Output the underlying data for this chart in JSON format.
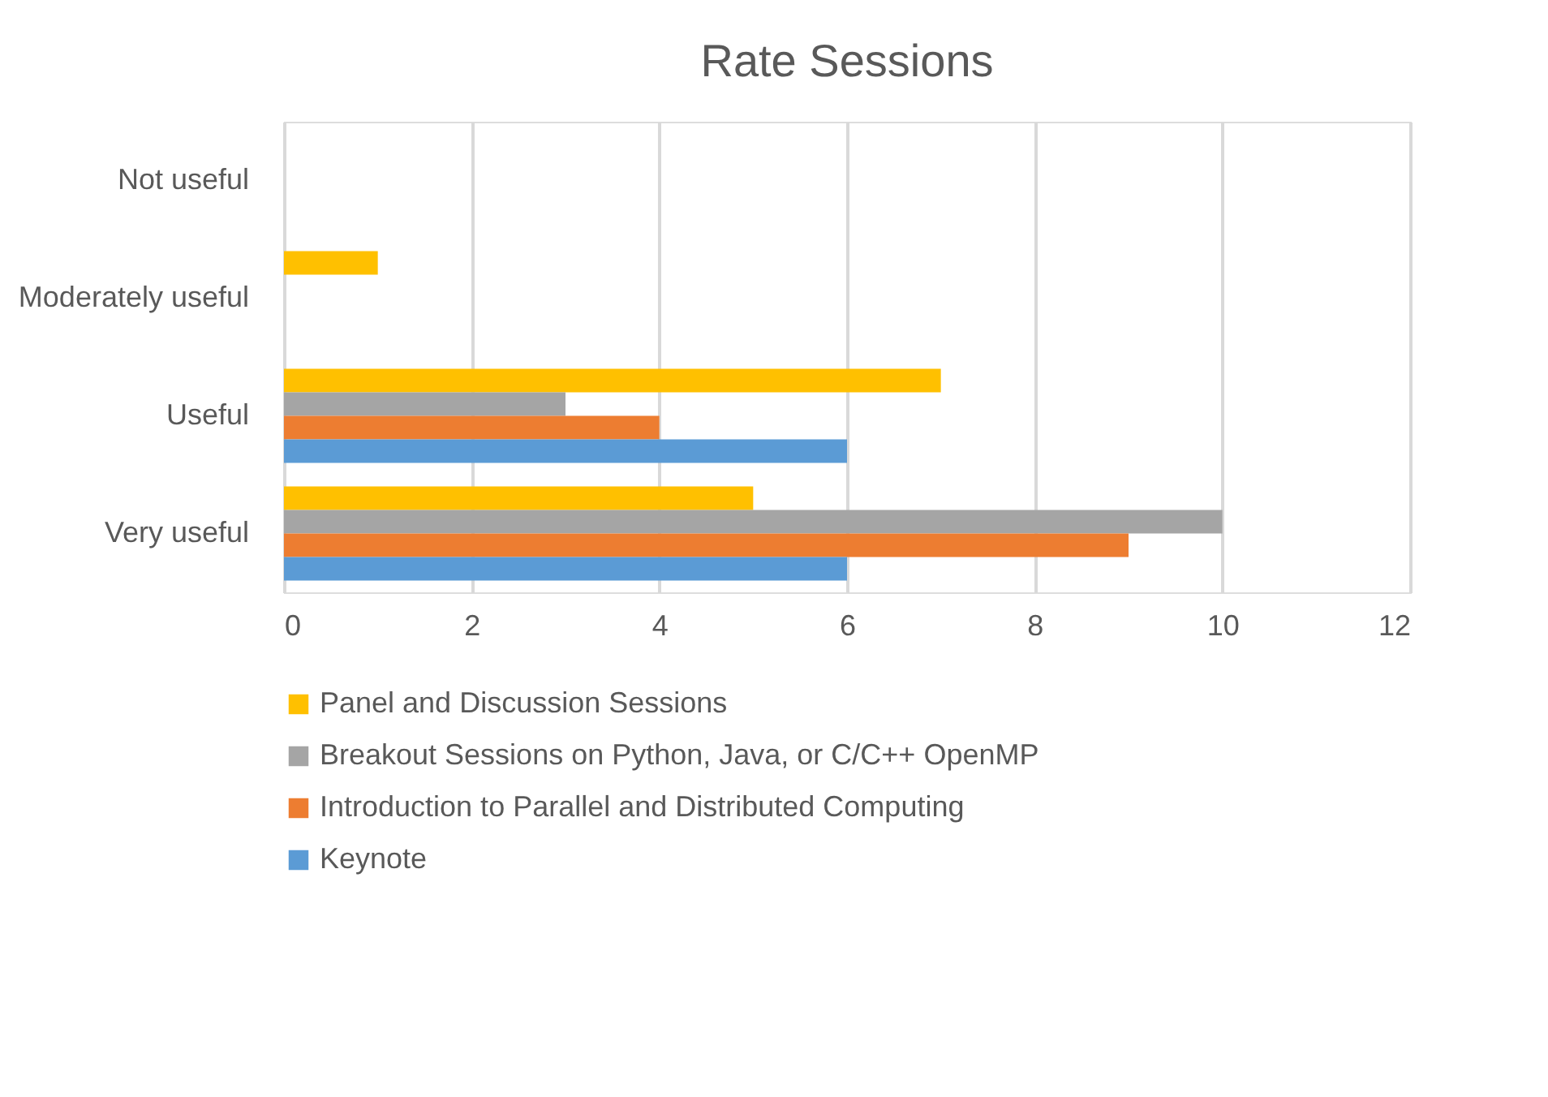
{
  "chart_data": {
    "type": "bar",
    "orientation": "horizontal",
    "title": "Rate Sessions",
    "categories": [
      "Not useful",
      "Moderately useful",
      "Useful",
      "Very useful"
    ],
    "series": [
      {
        "name": "Panel and Discussion Sessions",
        "color": "#ffc000",
        "values": [
          0,
          1,
          7,
          5
        ]
      },
      {
        "name": "Breakout Sessions on Python, Java, or C/C++ OpenMP",
        "color": "#a5a5a5",
        "values": [
          0,
          0,
          3,
          10
        ]
      },
      {
        "name": "Introduction to Parallel and Distributed Computing",
        "color": "#ed7d31",
        "values": [
          0,
          0,
          4,
          9
        ]
      },
      {
        "name": "Keynote",
        "color": "#5b9bd5",
        "values": [
          0,
          0,
          6,
          6
        ]
      }
    ],
    "xlim": [
      0,
      12
    ],
    "xticks": [
      0,
      2,
      4,
      6,
      8,
      10,
      12
    ],
    "grid": "x",
    "legend": "bottom"
  }
}
